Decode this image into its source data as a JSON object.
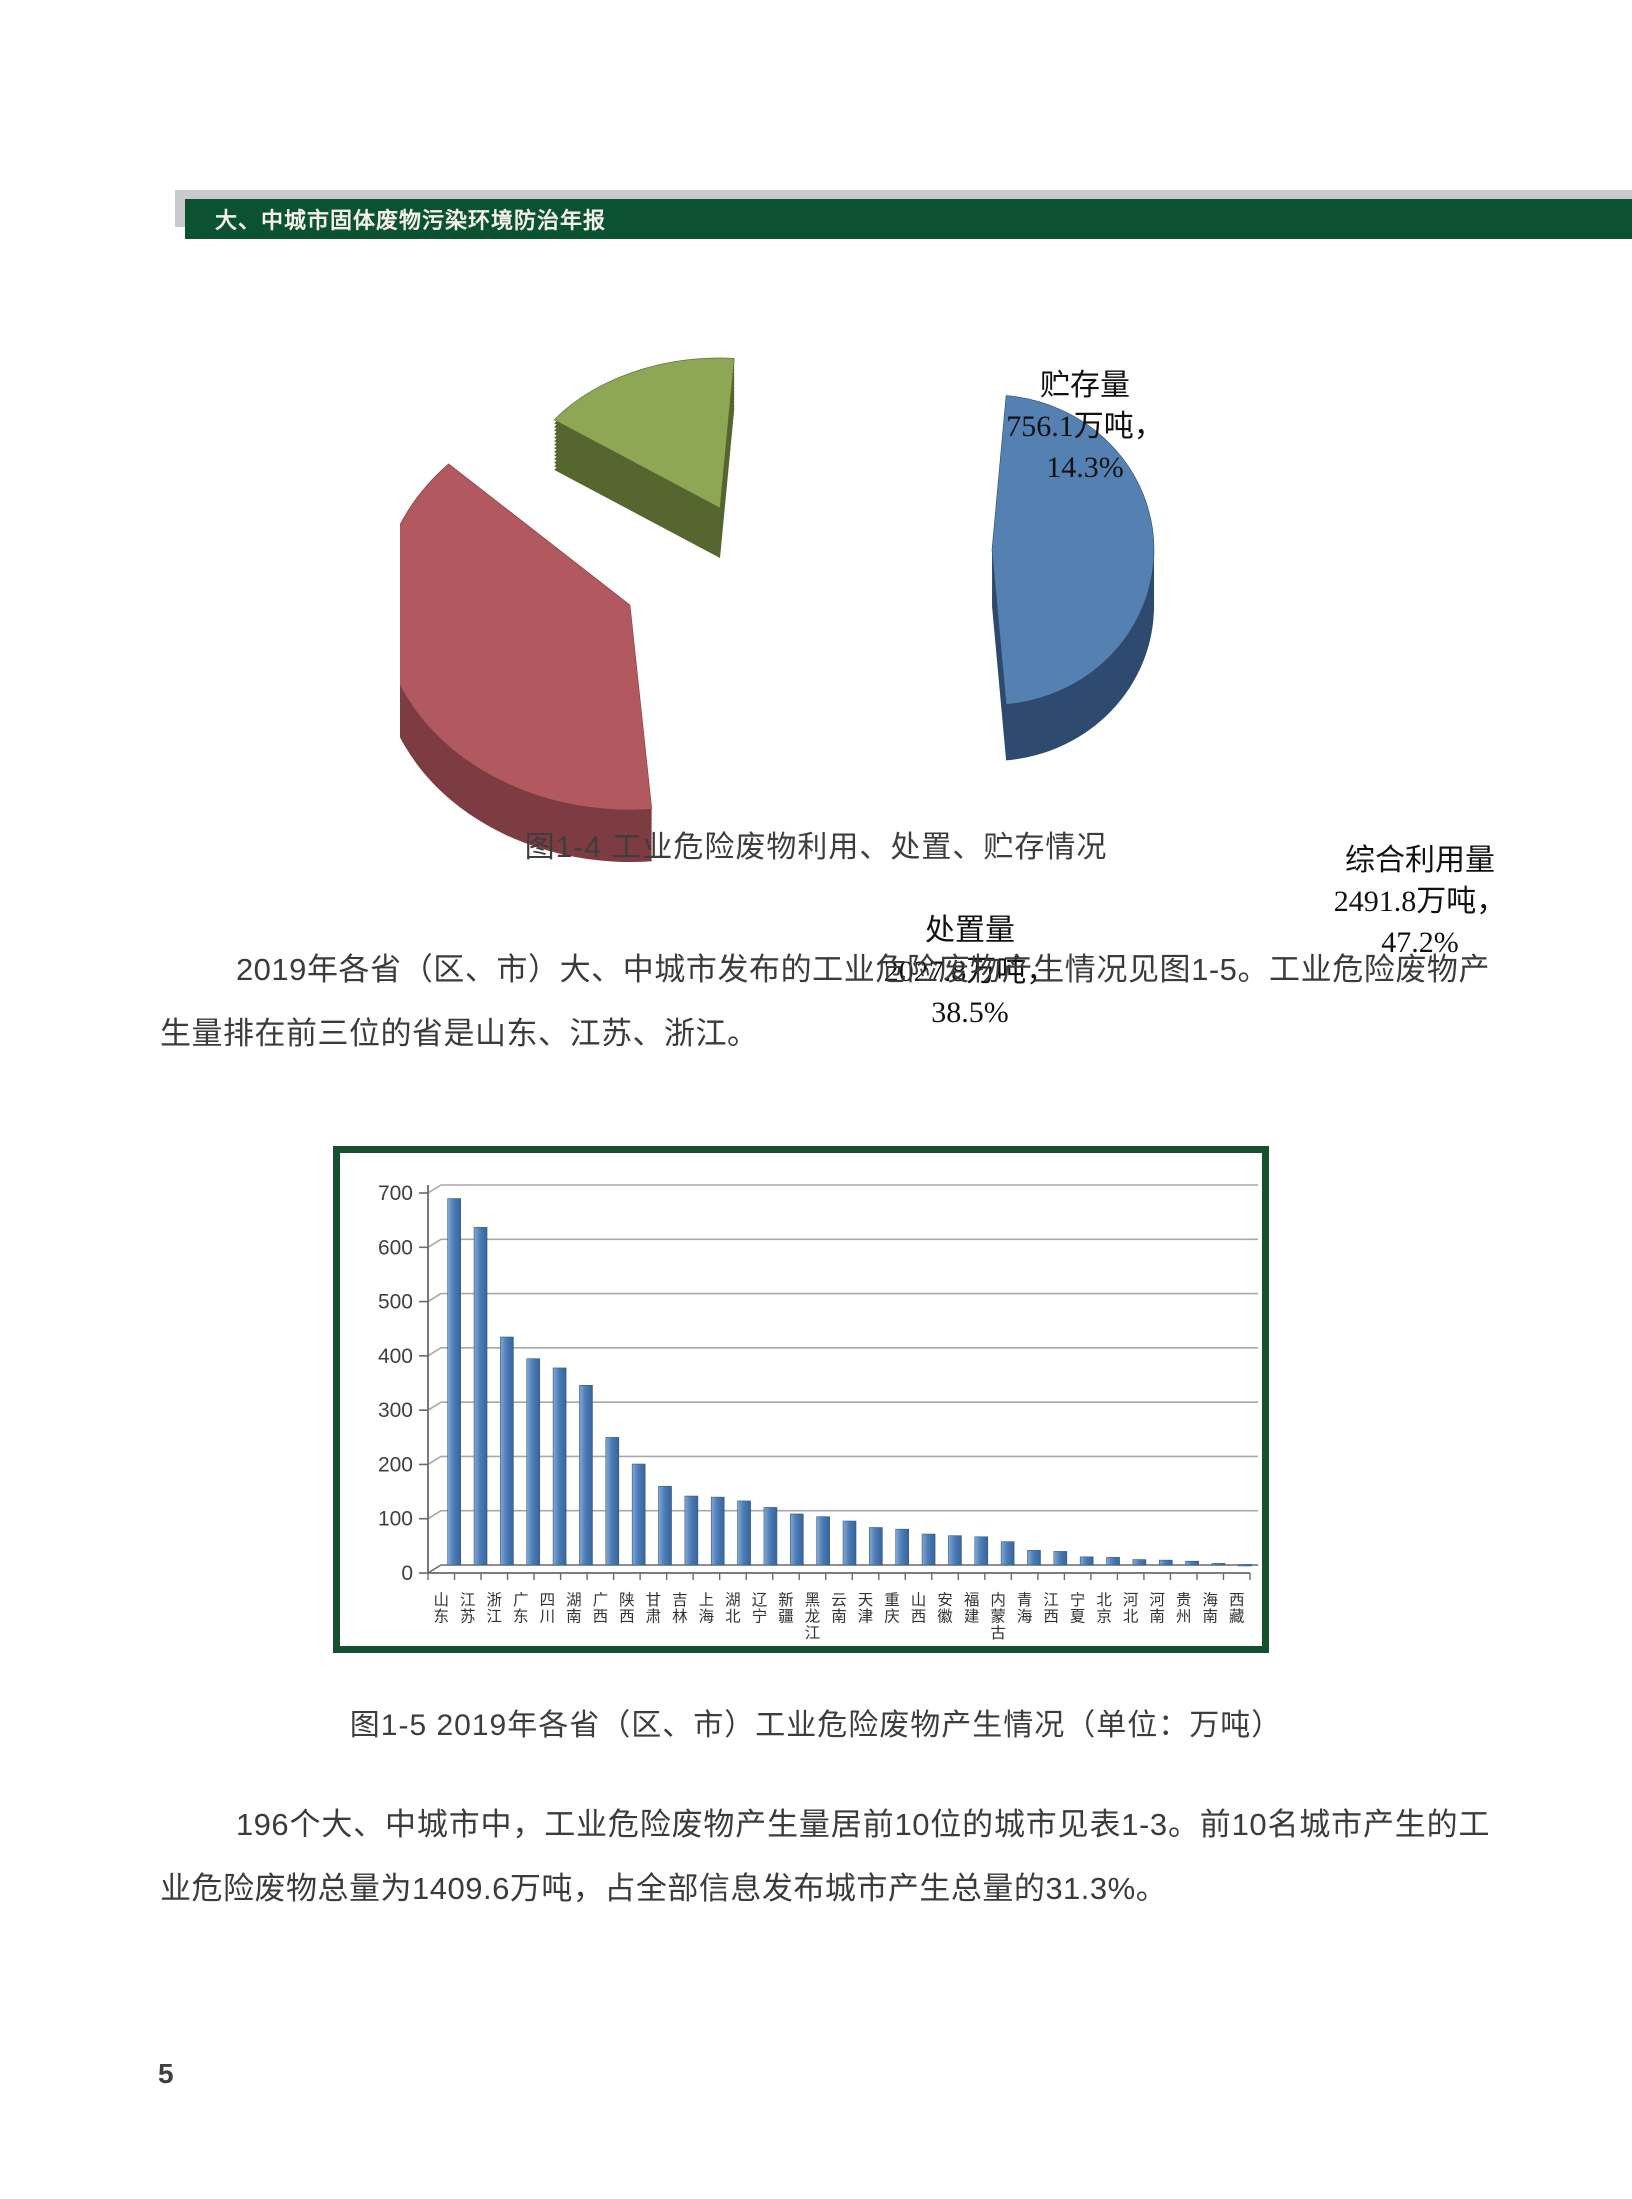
{
  "header": {
    "title": "大、中城市固体废物污染环境防治年报"
  },
  "figure4": {
    "caption": "图1-4  工业危险废物利用、处置、贮存情况"
  },
  "paragraph1": "2019年各省（区、市）大、中城市发布的工业危险废物产生情况见图1-5。工业危险废物产生量排在前三位的省是山东、江苏、浙江。",
  "figure5": {
    "caption": "图1-5 2019年各省（区、市）工业危险废物产生情况（单位：万吨）"
  },
  "paragraph2": "196个大、中城市中，工业危险废物产生量居前10位的城市见表1-3。前10名城市产生的工业危险废物总量为1409.6万吨，占全部信息发布城市产生总量的31.3%。",
  "page": {
    "number": "5"
  },
  "chart_data": [
    {
      "type": "pie",
      "style": "3d-exploded",
      "title": "工业危险废物利用、处置、贮存情况",
      "unit": "万吨",
      "slices": [
        {
          "name": "综合利用量",
          "amount": "2491.8万吨，",
          "percent_label": "47.2%",
          "value": 2491.8,
          "percent": 47.2,
          "color": "#5580b2",
          "side_color": "#2e4a6e"
        },
        {
          "name": "处置量",
          "amount": "2027.8万吨，",
          "percent_label": "38.5%",
          "value": 2027.8,
          "percent": 38.5,
          "color": "#b2595f",
          "side_color": "#7c3c42"
        },
        {
          "name": "贮存量",
          "amount": "756.1万吨，",
          "percent_label": "14.3%",
          "value": 756.1,
          "percent": 14.3,
          "color": "#8ea754",
          "side_color": "#55662f"
        }
      ]
    },
    {
      "type": "bar",
      "title": "2019年各省（区、市）工业危险废物产生情况",
      "unit": "万吨",
      "ylim": [
        0,
        700
      ],
      "ytick_step": 100,
      "grid": true,
      "legend": "none",
      "bar_color": "#4b7db8",
      "categories": [
        "山东",
        "江苏",
        "浙江",
        "广东",
        "四川",
        "湖南",
        "广西",
        "陕西",
        "甘肃",
        "吉林",
        "上海",
        "湖北",
        "辽宁",
        "新疆",
        "黑龙江",
        "云南",
        "天津",
        "重庆",
        "山西",
        "安徽",
        "福建",
        "内蒙古",
        "青海",
        "江西",
        "宁夏",
        "北京",
        "河北",
        "河南",
        "贵州",
        "海南",
        "西藏"
      ],
      "values": [
        675,
        622,
        420,
        380,
        363,
        331,
        235,
        186,
        145,
        127,
        125,
        118,
        106,
        94,
        89,
        81,
        69,
        66,
        57,
        54,
        52,
        43,
        27,
        25,
        15,
        14,
        10,
        9,
        7,
        3,
        1
      ]
    }
  ]
}
